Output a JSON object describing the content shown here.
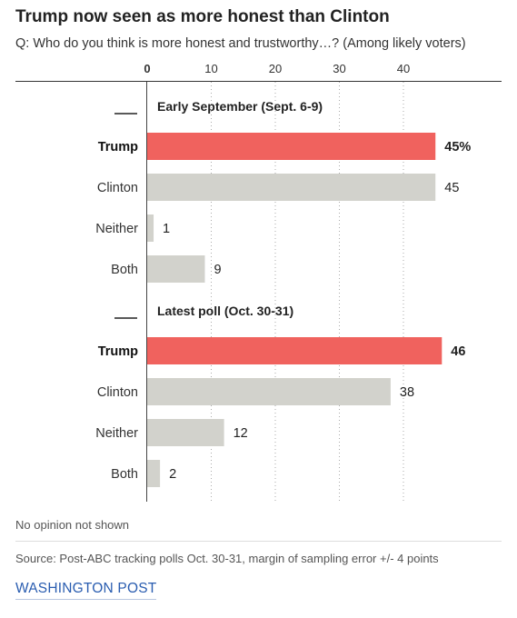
{
  "header": {
    "title": "Trump now seen as more honest than Clinton",
    "subtitle": "Q: Who do you think is more honest and trustworthy…? (Among likely voters)"
  },
  "colors": {
    "highlight": "#f0625e",
    "neutral": "#d2d2cc",
    "axis": "#444444",
    "grid": "#aaaaaa",
    "credit": "#2a5db0"
  },
  "chart_data": {
    "type": "bar",
    "orientation": "horizontal",
    "title": "Trump now seen as more honest than Clinton",
    "x_ticks": [
      0,
      10,
      20,
      30,
      40
    ],
    "xlim": [
      0,
      50
    ],
    "grid": true,
    "legend": "none",
    "groups": [
      {
        "name": "Early September (Sept. 6-9)",
        "bars": [
          {
            "label": "Trump",
            "value": 45,
            "display": "45%",
            "highlight": true
          },
          {
            "label": "Clinton",
            "value": 45,
            "display": "45",
            "highlight": false
          },
          {
            "label": "Neither",
            "value": 1,
            "display": "1",
            "highlight": false
          },
          {
            "label": "Both",
            "value": 9,
            "display": "9",
            "highlight": false
          }
        ]
      },
      {
        "name": "Latest poll (Oct. 30-31)",
        "bars": [
          {
            "label": "Trump",
            "value": 46,
            "display": "46",
            "highlight": true
          },
          {
            "label": "Clinton",
            "value": 38,
            "display": "38",
            "highlight": false
          },
          {
            "label": "Neither",
            "value": 12,
            "display": "12",
            "highlight": false
          },
          {
            "label": "Both",
            "value": 2,
            "display": "2",
            "highlight": false
          }
        ]
      }
    ]
  },
  "footer": {
    "note": "No opinion not shown",
    "source": "Source: Post-ABC tracking polls Oct. 30-31, margin of sampling error +/- 4 points",
    "credit": "WASHINGTON POST"
  }
}
